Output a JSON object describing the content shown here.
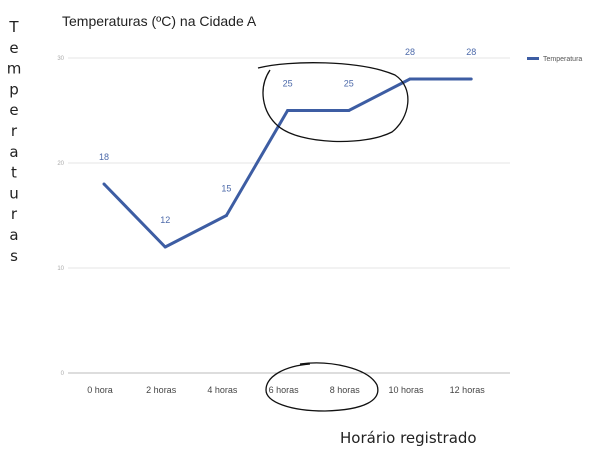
{
  "chart_data": {
    "type": "line",
    "title": "Temperaturas (ºC) na Cidade A",
    "ylabel": "Temperaturas",
    "xlabel": "Horário registrado",
    "categories": [
      "0 hora",
      "2 horas",
      "4 horas",
      "6 horas",
      "8 horas",
      "10 horas",
      "12 horas"
    ],
    "series": [
      {
        "name": "Temperatura",
        "values": [
          18,
          12,
          15,
          25,
          25,
          28,
          28
        ]
      }
    ],
    "ylim": [
      0,
      30
    ],
    "yticks": [
      0,
      10,
      20,
      30
    ],
    "grid": true,
    "legend_position": "right",
    "line_color": "#3d5da3",
    "annotations": [
      "hand-drawn circle around points at 6 horas and 8 horas",
      "hand-drawn circle around x labels 6 horas and 8 horas"
    ]
  }
}
